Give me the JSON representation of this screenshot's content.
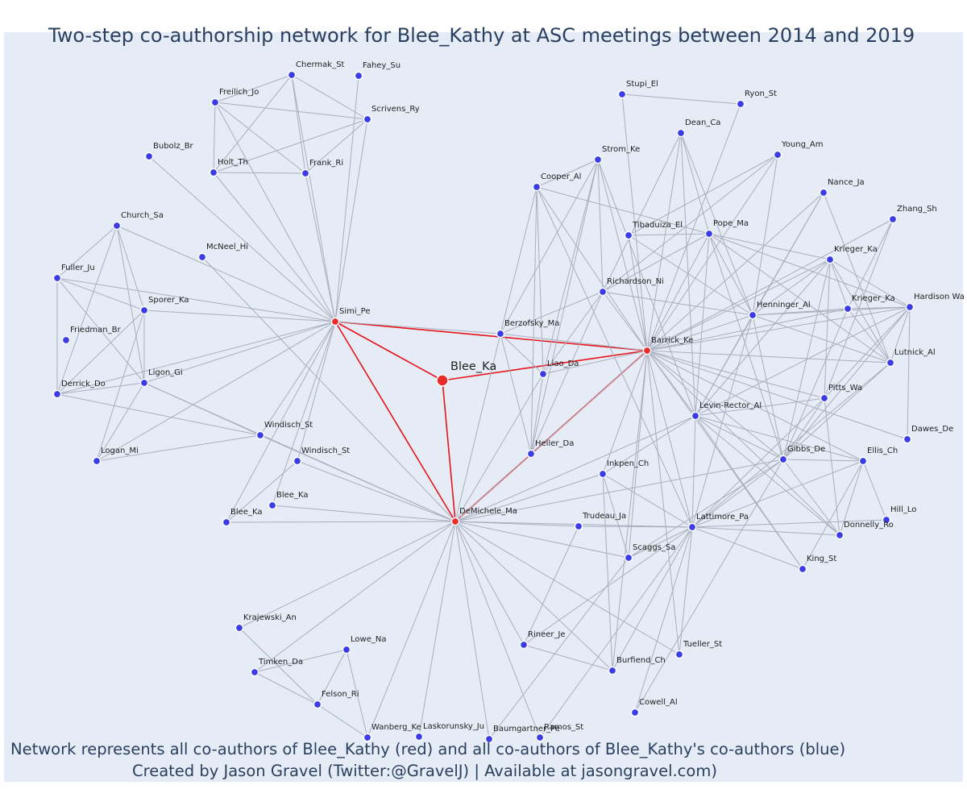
{
  "title": "Two-step co-authorship network for Blee_Kathy at ASC meetings between 2014 and 2019",
  "footer": {
    "line1": "Network represents all co-authors of Blee_Kathy (red) and all co-authors of Blee_Kathy's co-authors (blue)",
    "line2": "Created by Jason Gravel (Twitter:@GravelJ) | Available at jasongravel.com)"
  },
  "colors": {
    "focal": "#ea2b2b",
    "coauthor": "#3c3ce6",
    "edge": "#a9aebd",
    "focal_edge": "#e8121a",
    "plot_bg": "#e5ecf6"
  },
  "nodes": [
    {
      "id": "blee_ka_main",
      "label": "Blee_Ka",
      "group": "red"
    },
    {
      "id": "simi_pe",
      "label": "Simi_Pe",
      "group": "red"
    },
    {
      "id": "barrick_ke",
      "label": "Barrick_Ke",
      "group": "red"
    },
    {
      "id": "demichele_ma",
      "label": "DeMichele_Ma",
      "group": "red"
    },
    {
      "id": "berzofsky_ma",
      "label": "Berzofsky_Ma",
      "group": "blue"
    },
    {
      "id": "liao_da",
      "label": "Liao_Da",
      "group": "blue"
    },
    {
      "id": "heller_da",
      "label": "Heller_Da",
      "group": "blue"
    },
    {
      "id": "chermak_st",
      "label": "Chermak_St",
      "group": "blue"
    },
    {
      "id": "fahey_su",
      "label": "Fahey_Su",
      "group": "blue"
    },
    {
      "id": "freilich_jo",
      "label": "Freilich_Jo",
      "group": "blue"
    },
    {
      "id": "scrivens_ry",
      "label": "Scrivens_Ry",
      "group": "blue"
    },
    {
      "id": "bubolz_br",
      "label": "Bubolz_Br",
      "group": "blue"
    },
    {
      "id": "holt_th",
      "label": "Holt_Th",
      "group": "blue"
    },
    {
      "id": "frank_ri",
      "label": "Frank_Ri",
      "group": "blue"
    },
    {
      "id": "church_sa",
      "label": "Church_Sa",
      "group": "blue"
    },
    {
      "id": "mcneel_hi",
      "label": "McNeel_Hi",
      "group": "blue"
    },
    {
      "id": "fuller_ju",
      "label": "Fuller_Ju",
      "group": "blue"
    },
    {
      "id": "sporer_ka",
      "label": "Sporer_Ka",
      "group": "blue"
    },
    {
      "id": "friedman_br",
      "label": "Friedman_Br",
      "group": "blue"
    },
    {
      "id": "derrick_do",
      "label": "Derrick_Do",
      "group": "blue"
    },
    {
      "id": "ligon_gi",
      "label": "Ligon_Gi",
      "group": "blue"
    },
    {
      "id": "logan_mi",
      "label": "Logan_Mi",
      "group": "blue"
    },
    {
      "id": "windisch_st1",
      "label": "Windisch_St",
      "group": "blue"
    },
    {
      "id": "windisch_st2",
      "label": "Windisch_St",
      "group": "blue"
    },
    {
      "id": "blee_ka2",
      "label": "Blee_Ka",
      "group": "blue"
    },
    {
      "id": "blee_ka3",
      "label": "Blee_Ka",
      "group": "blue"
    },
    {
      "id": "stupi_el",
      "label": "Stupi_El",
      "group": "blue"
    },
    {
      "id": "ryon_st",
      "label": "Ryon_St",
      "group": "blue"
    },
    {
      "id": "dean_ca",
      "label": "Dean_Ca",
      "group": "blue"
    },
    {
      "id": "young_am",
      "label": "Young_Am",
      "group": "blue"
    },
    {
      "id": "strom_ke",
      "label": "Strom_Ke",
      "group": "blue"
    },
    {
      "id": "cooper_al",
      "label": "Cooper_Al",
      "group": "blue"
    },
    {
      "id": "nance_ja",
      "label": "Nance_Ja",
      "group": "blue"
    },
    {
      "id": "zhang_sh",
      "label": "Zhang_Sh",
      "group": "blue"
    },
    {
      "id": "tibaduiza_el",
      "label": "Tibaduiza_El",
      "group": "blue"
    },
    {
      "id": "pope_ma",
      "label": "Pope_Ma",
      "group": "blue"
    },
    {
      "id": "krieger_ka1",
      "label": "Krieger_Ka",
      "group": "blue"
    },
    {
      "id": "richardson_ni",
      "label": "Richardson_Ni",
      "group": "blue"
    },
    {
      "id": "henninger_al",
      "label": "Henninger_Al",
      "group": "blue"
    },
    {
      "id": "krieger_ka2",
      "label": "Krieger_Ka",
      "group": "blue"
    },
    {
      "id": "hardison_wa",
      "label": "Hardison Wa",
      "group": "blue"
    },
    {
      "id": "lutnick_al",
      "label": "Lutnick_Al",
      "group": "blue"
    },
    {
      "id": "pitts_wa",
      "label": "Pitts_Wa",
      "group": "blue"
    },
    {
      "id": "levin_rector_al",
      "label": "Levin-Rector_Al",
      "group": "blue"
    },
    {
      "id": "dawes_de",
      "label": "Dawes_De",
      "group": "blue"
    },
    {
      "id": "gibbs_de",
      "label": "Gibbs_De",
      "group": "blue"
    },
    {
      "id": "ellis_ch",
      "label": "Ellis_Ch",
      "group": "blue"
    },
    {
      "id": "inkpen_ch",
      "label": "Inkpen_Ch",
      "group": "blue"
    },
    {
      "id": "trudeau_ja",
      "label": "Trudeau_Ja",
      "group": "blue"
    },
    {
      "id": "lattimore_pa",
      "label": "Lattimore_Pa",
      "group": "blue"
    },
    {
      "id": "hill_lo",
      "label": "Hill_Lo",
      "group": "blue"
    },
    {
      "id": "donnelly_ro",
      "label": "Donnelly_Ro",
      "group": "blue"
    },
    {
      "id": "scaggs_sa",
      "label": "Scaggs_Sa",
      "group": "blue"
    },
    {
      "id": "king_st",
      "label": "King_St",
      "group": "blue"
    },
    {
      "id": "krajewski_an",
      "label": "Krajewski_An",
      "group": "blue"
    },
    {
      "id": "lowe_na",
      "label": "Lowe_Na",
      "group": "blue"
    },
    {
      "id": "timken_da",
      "label": "Timken_Da",
      "group": "blue"
    },
    {
      "id": "felson_ri",
      "label": "Felson_Ri",
      "group": "blue"
    },
    {
      "id": "rineer_je",
      "label": "Rineer_Je",
      "group": "blue"
    },
    {
      "id": "tueller_st",
      "label": "Tueller_St",
      "group": "blue"
    },
    {
      "id": "burfiend_ch",
      "label": "Burfiend_Ch",
      "group": "blue"
    },
    {
      "id": "cowell_al",
      "label": "Cowell_Al",
      "group": "blue"
    },
    {
      "id": "wanberg_ke",
      "label": "Wanberg_Ke",
      "group": "blue"
    },
    {
      "id": "laskorunsky_ju",
      "label": "Laskorunsky_Ju",
      "group": "blue"
    },
    {
      "id": "baumgartner_pe",
      "label": "Baumgartner_Pe",
      "group": "blue"
    },
    {
      "id": "ramos_st",
      "label": "Ramos_St",
      "group": "blue"
    }
  ],
  "edges": [
    [
      "blee_ka_main",
      "simi_pe"
    ],
    [
      "blee_ka_main",
      "barrick_ke"
    ],
    [
      "blee_ka_main",
      "demichele_ma"
    ],
    [
      "simi_pe",
      "barrick_ke"
    ],
    [
      "simi_pe",
      "demichele_ma"
    ],
    [
      "barrick_ke",
      "demichele_ma"
    ],
    [
      "simi_pe",
      "chermak_st"
    ],
    [
      "simi_pe",
      "fahey_su"
    ],
    [
      "simi_pe",
      "freilich_jo"
    ],
    [
      "simi_pe",
      "scrivens_ry"
    ],
    [
      "simi_pe",
      "bubolz_br"
    ],
    [
      "simi_pe",
      "holt_th"
    ],
    [
      "simi_pe",
      "frank_ri"
    ],
    [
      "simi_pe",
      "church_sa"
    ],
    [
      "simi_pe",
      "fuller_ju"
    ],
    [
      "simi_pe",
      "sporer_ka"
    ],
    [
      "simi_pe",
      "derrick_do"
    ],
    [
      "simi_pe",
      "ligon_gi"
    ],
    [
      "simi_pe",
      "logan_mi"
    ],
    [
      "simi_pe",
      "windisch_st1"
    ],
    [
      "simi_pe",
      "windisch_st2"
    ],
    [
      "simi_pe",
      "blee_ka2"
    ],
    [
      "simi_pe",
      "blee_ka3"
    ],
    [
      "simi_pe",
      "berzofsky_ma"
    ],
    [
      "chermak_st",
      "freilich_jo"
    ],
    [
      "chermak_st",
      "holt_th"
    ],
    [
      "chermak_st",
      "frank_ri"
    ],
    [
      "chermak_st",
      "scrivens_ry"
    ],
    [
      "freilich_jo",
      "holt_th"
    ],
    [
      "freilich_jo",
      "frank_ri"
    ],
    [
      "freilich_jo",
      "scrivens_ry"
    ],
    [
      "holt_th",
      "frank_ri"
    ],
    [
      "holt_th",
      "scrivens_ry"
    ],
    [
      "frank_ri",
      "scrivens_ry"
    ],
    [
      "church_sa",
      "fuller_ju"
    ],
    [
      "church_sa",
      "sporer_ka"
    ],
    [
      "church_sa",
      "derrick_do"
    ],
    [
      "church_sa",
      "ligon_gi"
    ],
    [
      "fuller_ju",
      "sporer_ka"
    ],
    [
      "fuller_ju",
      "derrick_do"
    ],
    [
      "fuller_ju",
      "ligon_gi"
    ],
    [
      "sporer_ka",
      "derrick_do"
    ],
    [
      "sporer_ka",
      "ligon_gi"
    ],
    [
      "sporer_ka",
      "logan_mi"
    ],
    [
      "derrick_do",
      "ligon_gi"
    ],
    [
      "derrick_do",
      "windisch_st1"
    ],
    [
      "ligon_gi",
      "logan_mi"
    ],
    [
      "ligon_gi",
      "windisch_st1"
    ],
    [
      "ligon_gi",
      "demichele_ma"
    ],
    [
      "logan_mi",
      "windisch_st1"
    ],
    [
      "mcneel_hi",
      "demichele_ma"
    ],
    [
      "windisch_st1",
      "demichele_ma"
    ],
    [
      "windisch_st2",
      "demichele_ma"
    ],
    [
      "blee_ka2",
      "demichele_ma"
    ],
    [
      "blee_ka3",
      "demichele_ma"
    ],
    [
      "blee_ka3",
      "windisch_st2"
    ],
    [
      "demichele_ma",
      "berzofsky_ma"
    ],
    [
      "demichele_ma",
      "heller_da"
    ],
    [
      "demichele_ma",
      "liao_da"
    ],
    [
      "demichele_ma",
      "inkpen_ch"
    ],
    [
      "demichele_ma",
      "trudeau_ja"
    ],
    [
      "demichele_ma",
      "lattimore_pa"
    ],
    [
      "demichele_ma",
      "scaggs_sa"
    ],
    [
      "demichele_ma",
      "krajewski_an"
    ],
    [
      "demichele_ma",
      "timken_da"
    ],
    [
      "demichele_ma",
      "rineer_je"
    ],
    [
      "demichele_ma",
      "tueller_st"
    ],
    [
      "demichele_ma",
      "burfiend_ch"
    ],
    [
      "demichele_ma",
      "wanberg_ke"
    ],
    [
      "demichele_ma",
      "laskorunsky_ju"
    ],
    [
      "demichele_ma",
      "baumgartner_pe"
    ],
    [
      "demichele_ma",
      "ramos_st"
    ],
    [
      "demichele_ma",
      "gibbs_de"
    ],
    [
      "demichele_ma",
      "levin_rector_al"
    ],
    [
      "krajewski_an",
      "felson_ri"
    ],
    [
      "timken_da",
      "lowe_na"
    ],
    [
      "timken_da",
      "felson_ri"
    ],
    [
      "lowe_na",
      "felson_ri"
    ],
    [
      "lowe_na",
      "wanberg_ke"
    ],
    [
      "felson_ri",
      "wanberg_ke"
    ],
    [
      "barrick_ke",
      "berzofsky_ma"
    ],
    [
      "barrick_ke",
      "liao_da"
    ],
    [
      "barrick_ke",
      "heller_da"
    ],
    [
      "barrick_ke",
      "stupi_el"
    ],
    [
      "barrick_ke",
      "ryon_st"
    ],
    [
      "barrick_ke",
      "dean_ca"
    ],
    [
      "barrick_ke",
      "young_am"
    ],
    [
      "barrick_ke",
      "strom_ke"
    ],
    [
      "barrick_ke",
      "cooper_al"
    ],
    [
      "barrick_ke",
      "nance_ja"
    ],
    [
      "barrick_ke",
      "zhang_sh"
    ],
    [
      "barrick_ke",
      "tibaduiza_el"
    ],
    [
      "barrick_ke",
      "pope_ma"
    ],
    [
      "barrick_ke",
      "krieger_ka1"
    ],
    [
      "barrick_ke",
      "richardson_ni"
    ],
    [
      "barrick_ke",
      "henninger_al"
    ],
    [
      "barrick_ke",
      "krieger_ka2"
    ],
    [
      "barrick_ke",
      "hardison_wa"
    ],
    [
      "barrick_ke",
      "lutnick_al"
    ],
    [
      "barrick_ke",
      "pitts_wa"
    ],
    [
      "barrick_ke",
      "levin_rector_al"
    ],
    [
      "barrick_ke",
      "dawes_de"
    ],
    [
      "barrick_ke",
      "gibbs_de"
    ],
    [
      "barrick_ke",
      "ellis_ch"
    ],
    [
      "barrick_ke",
      "inkpen_ch"
    ],
    [
      "barrick_ke",
      "lattimore_pa"
    ],
    [
      "barrick_ke",
      "donnelly_ro"
    ],
    [
      "barrick_ke",
      "scaggs_sa"
    ],
    [
      "barrick_ke",
      "king_st"
    ],
    [
      "barrick_ke",
      "tueller_st"
    ],
    [
      "barrick_ke",
      "burfiend_ch"
    ],
    [
      "stupi_el",
      "ryon_st"
    ],
    [
      "cooper_al",
      "liao_da"
    ],
    [
      "cooper_al",
      "heller_da"
    ],
    [
      "cooper_al",
      "berzofsky_ma"
    ],
    [
      "cooper_al",
      "pope_ma"
    ],
    [
      "cooper_al",
      "lattimore_pa"
    ],
    [
      "strom_ke",
      "liao_da"
    ],
    [
      "strom_ke",
      "heller_da"
    ],
    [
      "strom_ke",
      "berzofsky_ma"
    ],
    [
      "strom_ke",
      "cooper_al"
    ],
    [
      "strom_ke",
      "levin_rector_al"
    ],
    [
      "strom_ke",
      "richardson_ni"
    ],
    [
      "dean_ca",
      "pope_ma"
    ],
    [
      "dean_ca",
      "henninger_al"
    ],
    [
      "dean_ca",
      "richardson_ni"
    ],
    [
      "dean_ca",
      "levin_rector_al"
    ],
    [
      "young_am",
      "tibaduiza_el"
    ],
    [
      "young_am",
      "henninger_al"
    ],
    [
      "young_am",
      "richardson_ni"
    ],
    [
      "nance_ja",
      "henninger_al"
    ],
    [
      "nance_ja",
      "lutnick_al"
    ],
    [
      "nance_ja",
      "levin_rector_al"
    ],
    [
      "zhang_sh",
      "krieger_ka2"
    ],
    [
      "zhang_sh",
      "pitts_wa"
    ],
    [
      "tibaduiza_el",
      "pope_ma"
    ],
    [
      "tibaduiza_el",
      "henninger_al"
    ],
    [
      "pope_ma",
      "richardson_ni"
    ],
    [
      "pope_ma",
      "krieger_ka1"
    ],
    [
      "pope_ma",
      "henninger_al"
    ],
    [
      "pope_ma",
      "gibbs_de"
    ],
    [
      "pope_ma",
      "lutnick_al"
    ],
    [
      "pope_ma",
      "levin_rector_al"
    ],
    [
      "pope_ma",
      "hardison_wa"
    ],
    [
      "krieger_ka1",
      "henninger_al"
    ],
    [
      "krieger_ka1",
      "krieger_ka2"
    ],
    [
      "krieger_ka1",
      "hardison_wa"
    ],
    [
      "krieger_ka1",
      "lutnick_al"
    ],
    [
      "krieger_ka1",
      "gibbs_de"
    ],
    [
      "krieger_ka1",
      "levin_rector_al"
    ],
    [
      "krieger_ka1",
      "pitts_wa"
    ],
    [
      "richardson_ni",
      "berzofsky_ma"
    ],
    [
      "richardson_ni",
      "liao_da"
    ],
    [
      "richardson_ni",
      "heller_da"
    ],
    [
      "richardson_ni",
      "henninger_al"
    ],
    [
      "henninger_al",
      "krieger_ka2"
    ],
    [
      "henninger_al",
      "hardison_wa"
    ],
    [
      "henninger_al",
      "lutnick_al"
    ],
    [
      "henninger_al",
      "levin_rector_al"
    ],
    [
      "henninger_al",
      "gibbs_de"
    ],
    [
      "henninger_al",
      "lattimore_pa"
    ],
    [
      "krieger_ka2",
      "hardison_wa"
    ],
    [
      "krieger_ka2",
      "lutnick_al"
    ],
    [
      "krieger_ka2",
      "gibbs_de"
    ],
    [
      "hardison_wa",
      "lutnick_al"
    ],
    [
      "hardison_wa",
      "dawes_de"
    ],
    [
      "hardison_wa",
      "gibbs_de"
    ],
    [
      "hardison_wa",
      "levin_rector_al"
    ],
    [
      "hardison_wa",
      "pitts_wa"
    ],
    [
      "lutnick_al",
      "gibbs_de"
    ],
    [
      "lutnick_al",
      "lattimore_pa"
    ],
    [
      "pitts_wa",
      "levin_rector_al"
    ],
    [
      "pitts_wa",
      "gibbs_de"
    ],
    [
      "pitts_wa",
      "donnelly_ro"
    ],
    [
      "pitts_wa",
      "lattimore_pa"
    ],
    [
      "levin_rector_al",
      "gibbs_de"
    ],
    [
      "levin_rector_al",
      "inkpen_ch"
    ],
    [
      "levin_rector_al",
      "lattimore_pa"
    ],
    [
      "levin_rector_al",
      "ellis_ch"
    ],
    [
      "levin_rector_al",
      "donnelly_ro"
    ],
    [
      "levin_rector_al",
      "king_st"
    ],
    [
      "gibbs_de",
      "ellis_ch"
    ],
    [
      "gibbs_de",
      "lattimore_pa"
    ],
    [
      "gibbs_de",
      "donnelly_ro"
    ],
    [
      "gibbs_de",
      "cowell_al"
    ],
    [
      "gibbs_de",
      "scaggs_sa"
    ],
    [
      "ellis_ch",
      "lattimore_pa"
    ],
    [
      "ellis_ch",
      "hill_lo"
    ],
    [
      "ellis_ch",
      "donnelly_ro"
    ],
    [
      "ellis_ch",
      "king_st"
    ],
    [
      "inkpen_ch",
      "scaggs_sa"
    ],
    [
      "inkpen_ch",
      "lattimore_pa"
    ],
    [
      "inkpen_ch",
      "burfiend_ch"
    ],
    [
      "trudeau_ja",
      "lattimore_pa"
    ],
    [
      "trudeau_ja",
      "rineer_je"
    ],
    [
      "lattimore_pa",
      "hill_lo"
    ],
    [
      "lattimore_pa",
      "donnelly_ro"
    ],
    [
      "lattimore_pa",
      "scaggs_sa"
    ],
    [
      "lattimore_pa",
      "king_st"
    ],
    [
      "lattimore_pa",
      "rineer_je"
    ],
    [
      "lattimore_pa",
      "tueller_st"
    ],
    [
      "lattimore_pa",
      "burfiend_ch"
    ],
    [
      "lattimore_pa",
      "cowell_al"
    ],
    [
      "lattimore_pa",
      "ramos_st"
    ],
    [
      "scaggs_sa",
      "baumgartner_pe"
    ],
    [
      "rineer_je",
      "burfiend_ch"
    ],
    [
      "berzofsky_ma",
      "heller_da"
    ],
    [
      "berzofsky_ma",
      "liao_da"
    ],
    [
      "liao_da",
      "heller_da"
    ]
  ]
}
